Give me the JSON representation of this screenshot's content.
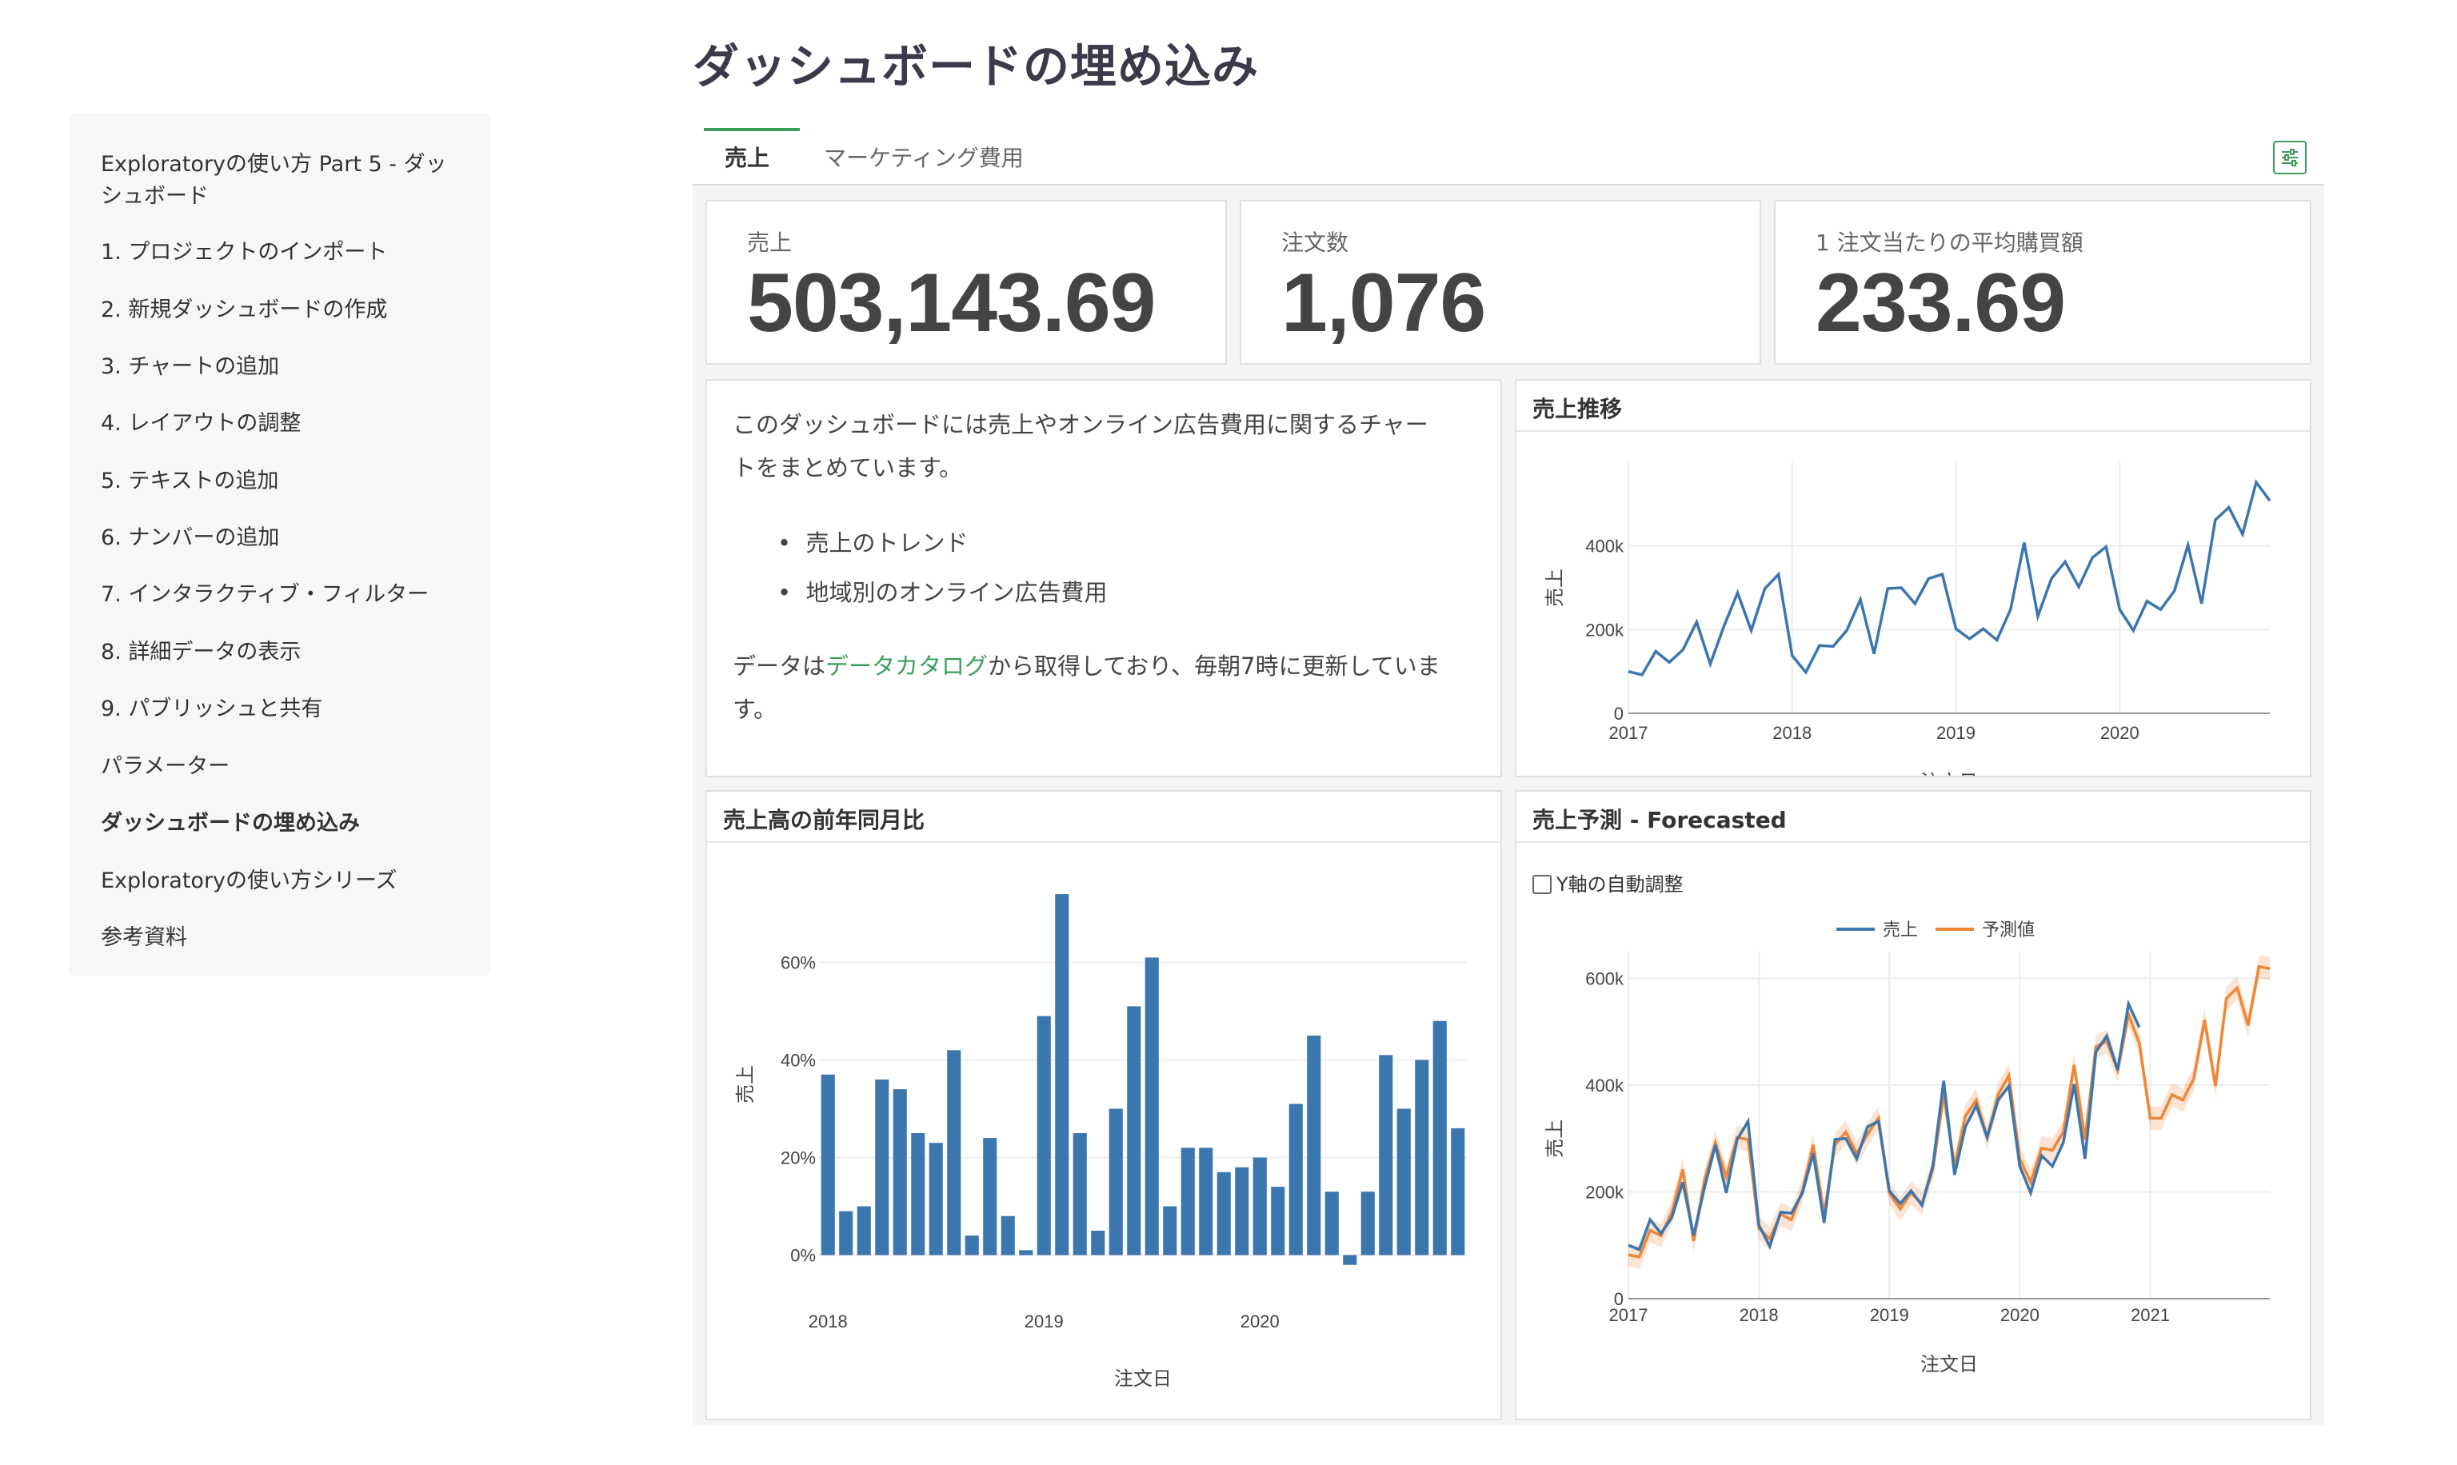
{
  "page_title": "ダッシュボードの埋め込み",
  "sidebar": {
    "items": [
      {
        "label": "Exploratoryの使い方 Part 5 - ダッ",
        "label2": "シュボード"
      },
      {
        "label": "1. プロジェクトのインポート"
      },
      {
        "label": "2. 新規ダッシュボードの作成"
      },
      {
        "label": "3. チャートの追加"
      },
      {
        "label": "4. レイアウトの調整"
      },
      {
        "label": "5. テキストの追加"
      },
      {
        "label": "6. ナンバーの追加"
      },
      {
        "label": "7. インタラクティブ・フィルター"
      },
      {
        "label": "8. 詳細データの表示"
      },
      {
        "label": "9. パブリッシュと共有"
      },
      {
        "label": "パラメーター"
      },
      {
        "label": "ダッシュボードの埋め込み"
      },
      {
        "label": "Exploratoryの使い方シリーズ"
      },
      {
        "label": "参考資料"
      }
    ]
  },
  "tabs": [
    {
      "label": "売上",
      "active": true
    },
    {
      "label": "マーケティング費用",
      "active": false
    }
  ],
  "filter_icon": "sliders-icon",
  "numbers": [
    {
      "label": "売上",
      "value": "503,143.69"
    },
    {
      "label": "注文数",
      "value": "1,076"
    },
    {
      "label": "1 注文当たりの平均購買額",
      "value": "233.69"
    }
  ],
  "text_card": {
    "para1_line1": "このダッシュボードには売上やオンライン広告費用に関するチャー",
    "para1_line2": "トをまとめています。",
    "bullets": [
      "売上のトレンド",
      "地域別のオンライン広告費用"
    ],
    "para2_prefix": "データは",
    "para2_link": "データカタログ",
    "para2_suffix": "から取得しており、毎朝7時に更新していま",
    "para2_line2": "す。"
  },
  "checkbox_label": "Y軸の自動調整",
  "colors": {
    "accent": "#3a9e5a",
    "series_blue": "#3b76af",
    "series_orange": "#ef8636"
  },
  "chart_data": [
    {
      "type": "line",
      "title": "売上推移",
      "xlabel": "注文日",
      "ylabel": "売上",
      "x_ticks": [
        "2017",
        "2018",
        "2019",
        "2020"
      ],
      "y_ticks": [
        "0",
        "200k",
        "400k"
      ],
      "ylim": [
        0,
        600000
      ],
      "x_start": "2017-01",
      "values": [
        100000,
        92000,
        148000,
        122000,
        152000,
        218000,
        118000,
        208000,
        288000,
        198000,
        298000,
        332000,
        138000,
        98000,
        162000,
        160000,
        198000,
        272000,
        142000,
        298000,
        300000,
        262000,
        322000,
        332000,
        202000,
        178000,
        202000,
        175000,
        248000,
        408000,
        232000,
        322000,
        362000,
        302000,
        372000,
        398000,
        248000,
        198000,
        268000,
        248000,
        292000,
        402000,
        262000,
        462000,
        492000,
        428000,
        552000,
        508000
      ]
    },
    {
      "type": "bar",
      "title": "売上高の前年同月比",
      "xlabel": "注文日",
      "ylabel": "売上",
      "x_ticks": [
        "2018",
        "2019",
        "2020"
      ],
      "y_ticks": [
        "0%",
        "20%",
        "40%",
        "60%"
      ],
      "ylim": [
        -5,
        75
      ],
      "x_start": "2018-01",
      "values": [
        37,
        9,
        10,
        36,
        34,
        25,
        23,
        42,
        4,
        24,
        8,
        1,
        49,
        74,
        25,
        5,
        30,
        51,
        61,
        10,
        22,
        22,
        17,
        18,
        20,
        14,
        31,
        45,
        13,
        -2,
        13,
        41,
        30,
        40,
        48,
        26
      ]
    },
    {
      "type": "line",
      "title": "売上予測 - Forecasted",
      "xlabel": "注文日",
      "ylabel": "売上",
      "legend": [
        "売上",
        "予測値"
      ],
      "legend_position": "top",
      "x_ticks": [
        "2017",
        "2018",
        "2019",
        "2020",
        "2021"
      ],
      "y_ticks": [
        "0",
        "200k",
        "400k",
        "600k"
      ],
      "ylim": [
        0,
        650000
      ],
      "x_start": "2017-01",
      "series": [
        {
          "name": "売上",
          "values": [
            100000,
            92000,
            148000,
            122000,
            152000,
            218000,
            118000,
            208000,
            288000,
            198000,
            298000,
            332000,
            138000,
            98000,
            162000,
            160000,
            198000,
            272000,
            142000,
            298000,
            300000,
            262000,
            322000,
            332000,
            202000,
            178000,
            202000,
            175000,
            248000,
            408000,
            232000,
            322000,
            362000,
            302000,
            372000,
            398000,
            248000,
            198000,
            268000,
            248000,
            292000,
            402000,
            262000,
            462000,
            492000,
            428000,
            552000,
            508000
          ]
        },
        {
          "name": "予測値",
          "values": [
            82000,
            78000,
            128000,
            118000,
            162000,
            242000,
            108000,
            222000,
            292000,
            228000,
            302000,
            298000,
            132000,
            112000,
            158000,
            148000,
            202000,
            288000,
            158000,
            288000,
            312000,
            272000,
            308000,
            338000,
            198000,
            168000,
            198000,
            178000,
            242000,
            382000,
            248000,
            342000,
            372000,
            302000,
            382000,
            418000,
            262000,
            218000,
            282000,
            278000,
            312000,
            438000,
            298000,
            472000,
            482000,
            428000,
            532000,
            478000,
            338000,
            338000,
            382000,
            372000,
            412000,
            522000,
            398000,
            562000,
            582000,
            512000,
            622000,
            618000
          ]
        }
      ]
    }
  ]
}
